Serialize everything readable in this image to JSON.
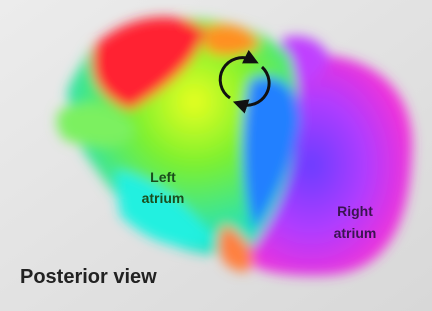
{
  "labels": [
    {
      "lines": [
        "Left",
        "atrium"
      ]
    },
    {
      "lines": [
        "Right",
        "atrium"
      ]
    }
  ],
  "caption": "Posterior view"
}
